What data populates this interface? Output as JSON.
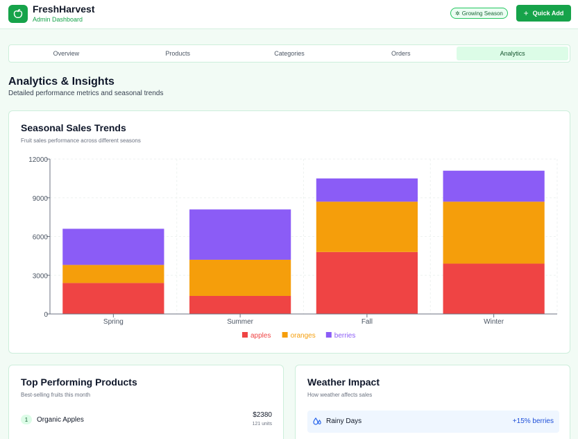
{
  "header": {
    "app_name": "FreshHarvest",
    "subtitle": "Admin Dashboard",
    "season_badge": "Growing Season",
    "quick_add_label": "Quick Add"
  },
  "tabs": [
    {
      "label": "Overview",
      "active": false
    },
    {
      "label": "Products",
      "active": false
    },
    {
      "label": "Categories",
      "active": false
    },
    {
      "label": "Orders",
      "active": false
    },
    {
      "label": "Analytics",
      "active": true
    }
  ],
  "page": {
    "title": "Analytics & Insights",
    "subtitle": "Detailed performance metrics and seasonal trends"
  },
  "sales_card": {
    "title": "Seasonal Sales Trends",
    "subtitle": "Fruit sales performance across different seasons"
  },
  "chart_data": {
    "type": "bar",
    "stacked": true,
    "categories": [
      "Spring",
      "Summer",
      "Fall",
      "Winter"
    ],
    "series": [
      {
        "name": "apples",
        "color": "#ef4444",
        "values": [
          2400,
          1400,
          4800,
          3900
        ]
      },
      {
        "name": "oranges",
        "color": "#f59e0b",
        "values": [
          1400,
          2800,
          3900,
          4800
        ]
      },
      {
        "name": "berries",
        "color": "#8b5cf6",
        "values": [
          2800,
          3900,
          1800,
          2400
        ]
      }
    ],
    "y_ticks": [
      0,
      3000,
      6000,
      9000,
      12000
    ],
    "ylim": [
      0,
      12000
    ],
    "grid": true,
    "legend_position": "bottom"
  },
  "top_products": {
    "title": "Top Performing Products",
    "subtitle": "Best-selling fruits this month",
    "items": [
      {
        "rank": "1",
        "name": "Organic Apples",
        "price": "$2380",
        "units": "121 units"
      }
    ]
  },
  "weather": {
    "title": "Weather Impact",
    "subtitle": "How weather affects sales",
    "items": [
      {
        "label": "Rainy Days",
        "effect": "+15% berries",
        "icon": "rain-drops-icon"
      }
    ]
  }
}
